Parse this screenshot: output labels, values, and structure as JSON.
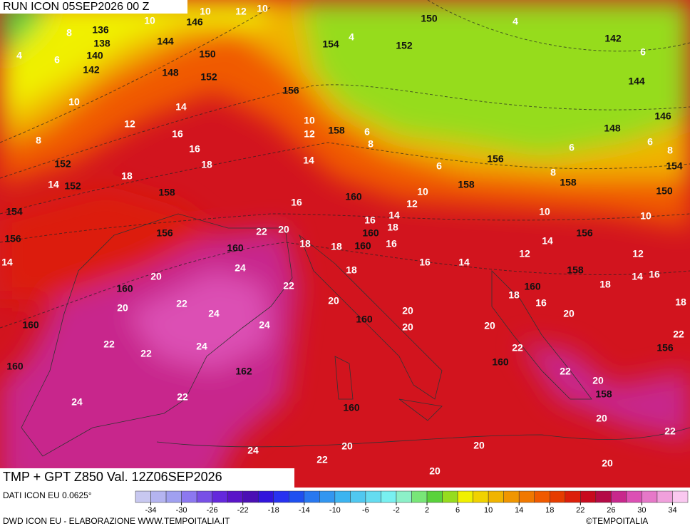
{
  "header": {
    "run": "RUN ICON 05SEP2026 00 Z",
    "field": "TMP + GPT Z850 Val. 12Z06SEP2026"
  },
  "footer": {
    "source": "DATI ICON EU 0.0625°",
    "credit": "DWD ICON EU - ELABORAZIONE WWW.TEMPOITALIA.IT",
    "copyright": "©TEMPOITALIA"
  },
  "map_labels": {
    "temperature": [
      10,
      12,
      10,
      10,
      8,
      6,
      4,
      10,
      12,
      8,
      14,
      16,
      16,
      18,
      18,
      14,
      14,
      16,
      12,
      10,
      22,
      20,
      18,
      18,
      16,
      14,
      18,
      16,
      20,
      20,
      24,
      22,
      22,
      24,
      24,
      22,
      22,
      24,
      22,
      24,
      24,
      20,
      20,
      20,
      20,
      22,
      22,
      20,
      20,
      22,
      20,
      20,
      20,
      20,
      22,
      10,
      12,
      10,
      14,
      12,
      14,
      16,
      18,
      18,
      16,
      20,
      18,
      18,
      22,
      14,
      16,
      12,
      10,
      6,
      8,
      6,
      6,
      8,
      4,
      4,
      6,
      8,
      6,
      14
    ],
    "geopotential": [
      136,
      138,
      140,
      142,
      146,
      144,
      150,
      148,
      152,
      154,
      152,
      150,
      142,
      144,
      146,
      148,
      156,
      158,
      156,
      158,
      154,
      150,
      152,
      152,
      154,
      156,
      158,
      156,
      158,
      160,
      160,
      160,
      160,
      160,
      160,
      160,
      160,
      160,
      156,
      158,
      160,
      162,
      160,
      158,
      156
    ]
  },
  "colorbar": {
    "colors": [
      "#c8c8f0",
      "#b4b4f0",
      "#a0a0f0",
      "#8c78f0",
      "#7850e6",
      "#6428dc",
      "#5a14c8",
      "#4b0fb4",
      "#3214dc",
      "#2832f0",
      "#1e50f0",
      "#2878f0",
      "#3296f0",
      "#3cb4f0",
      "#50c8f0",
      "#64dcf0",
      "#78f0f0",
      "#8cf0c8",
      "#78e678",
      "#5ad23c",
      "#96dc1e",
      "#f0f000",
      "#f0d200",
      "#f0b400",
      "#f09600",
      "#f07800",
      "#f05a00",
      "#e63c00",
      "#dc1e0a",
      "#c80a1e",
      "#b40a46",
      "#c8288c",
      "#dc50b4",
      "#e678c8",
      "#f0a0dc",
      "#fac8f0"
    ],
    "ticks": [
      -34,
      -30,
      -26,
      -22,
      -18,
      -14,
      -10,
      -6,
      -2,
      2,
      6,
      10,
      14,
      18,
      22,
      26,
      30,
      34
    ]
  }
}
